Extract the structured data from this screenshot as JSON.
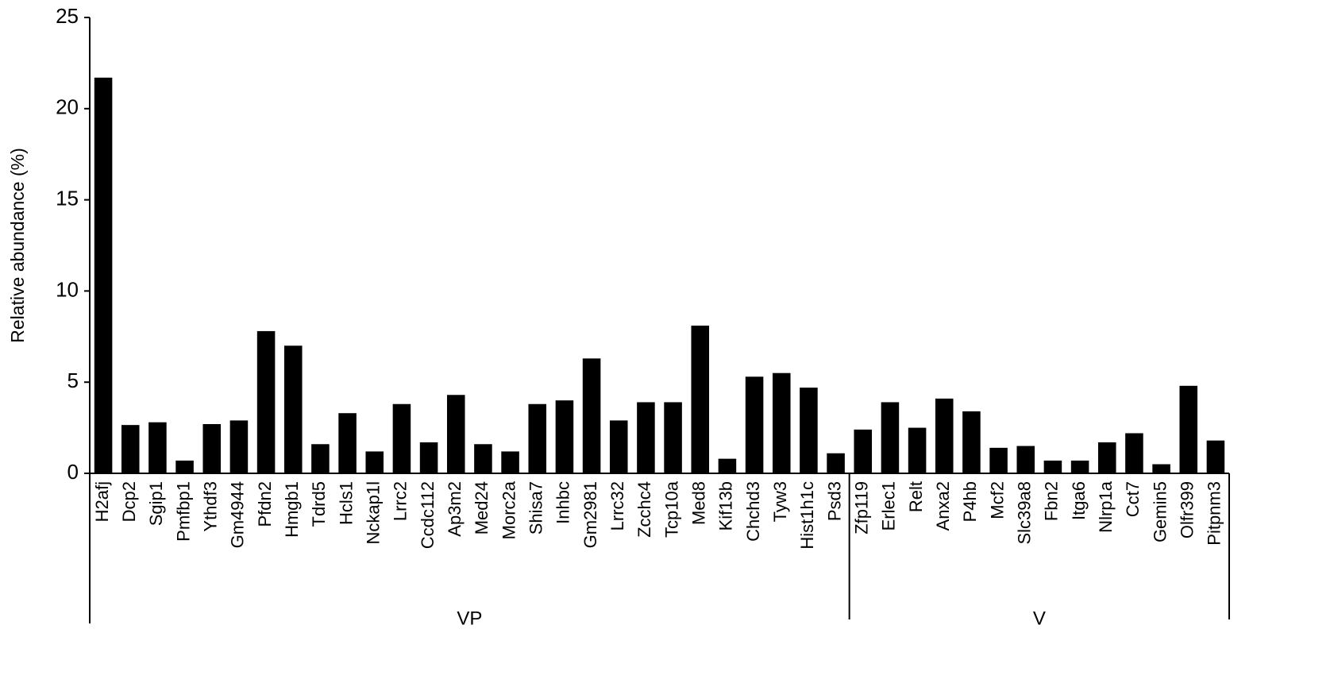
{
  "chart_data": {
    "type": "bar",
    "ylabel": "Relative abundance (%)",
    "categories": [
      "H2afj",
      "Dcp2",
      "Sgip1",
      "Pmfbp1",
      "Ythdf3",
      "Gm4944",
      "Pfdn2",
      "Hmgb1",
      "Tdrd5",
      "Hcls1",
      "Nckap1l",
      "Lrrc2",
      "Ccdc112",
      "Ap3m2",
      "Med24",
      "Morc2a",
      "Shisa7",
      "Inhbc",
      "Gm2981",
      "Lrrc32",
      "Zcchc4",
      "Tcp10a",
      "Med8",
      "Kif13b",
      "Chchd3",
      "Tyw3",
      "Hist1h1c",
      "Psd3",
      "Zfp119",
      "Erlec1",
      "Relt",
      "Anxa2",
      "P4hb",
      "Mcf2",
      "Slc39a8",
      "Fbn2",
      "Itga6",
      "Nlrp1a",
      "Cct7",
      "Gemin5",
      "Olfr399",
      "Pitpnm3"
    ],
    "values": [
      21.7,
      2.65,
      2.8,
      0.7,
      2.7,
      2.9,
      7.8,
      7.0,
      1.6,
      3.3,
      1.2,
      3.8,
      1.7,
      4.3,
      1.6,
      1.2,
      3.8,
      4.0,
      6.3,
      2.9,
      3.9,
      3.9,
      8.1,
      0.8,
      5.3,
      5.5,
      4.7,
      1.1,
      2.4,
      3.9,
      2.5,
      4.1,
      3.4,
      1.4,
      1.5,
      0.7,
      0.7,
      1.7,
      2.2,
      0.5,
      4.8,
      1.8
    ],
    "color": "#000000",
    "groups": [
      {
        "label": "VP",
        "size": 28
      },
      {
        "label": "V",
        "size": 14
      }
    ],
    "ylim": [
      0,
      25
    ],
    "yticks": [
      0,
      5,
      10,
      15,
      20,
      25
    ],
    "grid": false
  }
}
